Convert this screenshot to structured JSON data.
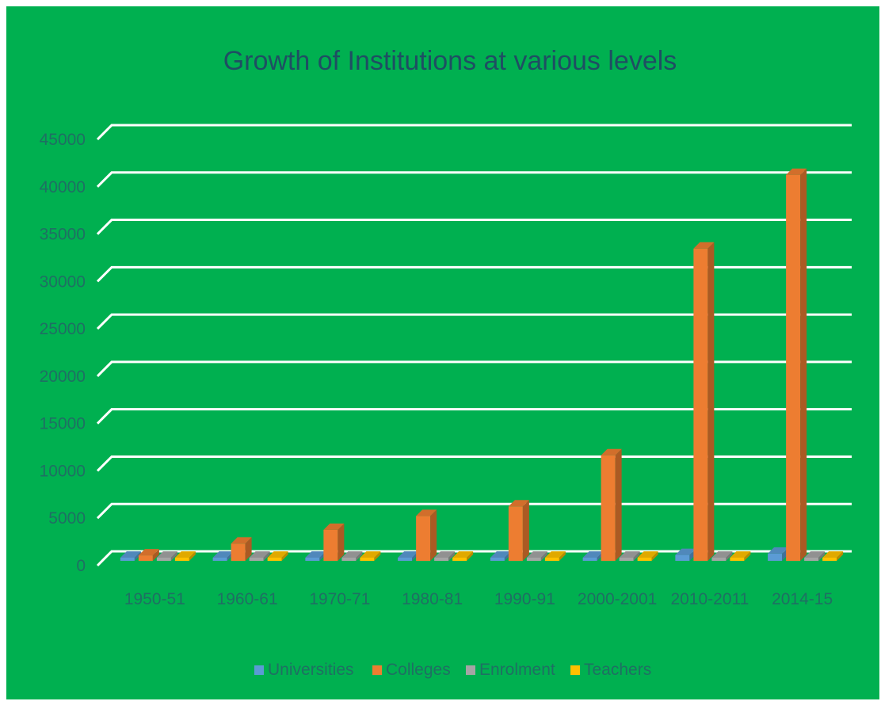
{
  "chart_data": {
    "type": "bar",
    "title": "Growth of Institutions at various levels",
    "categories": [
      "1950-51",
      "1960-61",
      "1970-71",
      "1980-81",
      "1990-91",
      "2000-2001",
      "2010-2011",
      "2014-15"
    ],
    "series": [
      {
        "name": "Universities",
        "color": "#5b9bd5",
        "values": [
          27,
          45,
          82,
          110,
          184,
          266,
          621,
          760
        ]
      },
      {
        "name": "Colleges",
        "color": "#ed7d31",
        "values": [
          578,
          1819,
          3277,
          4738,
          5748,
          11146,
          32974,
          40760
        ]
      },
      {
        "name": "Enrolment",
        "color": "#a5a5a5",
        "values": [
          0,
          0,
          0,
          0,
          0,
          0,
          0,
          0
        ]
      },
      {
        "name": "Teachers",
        "color": "#ffc000",
        "values": [
          0,
          0,
          0,
          0,
          0,
          0,
          0,
          0
        ]
      }
    ],
    "yticks": [
      "0",
      "5000",
      "10000",
      "15000",
      "20000",
      "25000",
      "30000",
      "35000",
      "40000",
      "45000"
    ],
    "ylim": [
      0,
      45000
    ],
    "grid": true,
    "legend": "bottom",
    "background": "#00b050",
    "gridline_color": "#ffffff"
  }
}
